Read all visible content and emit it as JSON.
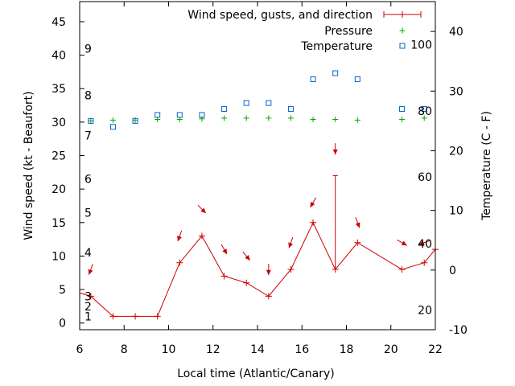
{
  "chart_data": {
    "type": "line",
    "xlabel": "Local time (Atlantic/Canary)",
    "ylabel": "Wind speed (kt - Beaufort)",
    "y2label": "Temperature (C - F)",
    "xlim": [
      6,
      22
    ],
    "ylim": [
      -1,
      48
    ],
    "y2lim": [
      -10,
      45
    ],
    "grid": false,
    "legend_placement": "top-right",
    "x_ticks": [
      6,
      8,
      10,
      12,
      14,
      16,
      18,
      20,
      22
    ],
    "y_ticks": [
      0,
      5,
      10,
      15,
      20,
      25,
      30,
      35,
      40,
      45
    ],
    "y2_ticks": [
      -10,
      0,
      10,
      20,
      30,
      40
    ],
    "beaufort_labels": [
      {
        "value": 1,
        "label": "1"
      },
      {
        "value": 2.5,
        "label": "2"
      },
      {
        "value": 4,
        "label": "3"
      },
      {
        "value": 10.5,
        "label": "4"
      },
      {
        "value": 16.5,
        "label": "5"
      },
      {
        "value": 21.5,
        "label": "6"
      },
      {
        "value": 28,
        "label": "7"
      },
      {
        "value": 34,
        "label": "8"
      },
      {
        "value": 41,
        "label": "9"
      }
    ],
    "fahrenheit_labels": [
      {
        "value": -6.7,
        "label": "20"
      },
      {
        "value": 4.4,
        "label": "40"
      },
      {
        "value": 15.6,
        "label": "60"
      },
      {
        "value": 26.7,
        "label": "80"
      },
      {
        "value": 37.8,
        "label": "100"
      }
    ],
    "series": [
      {
        "name": "Wind speed, gusts, and direction",
        "color": "#cc0000",
        "x": [
          5.5,
          6.5,
          7.5,
          8.5,
          9.5,
          10.5,
          11.5,
          12.5,
          13.5,
          14.5,
          15.5,
          16.5,
          17.5,
          18.5,
          20.5,
          21.5,
          22
        ],
        "y": [
          5,
          4,
          1,
          1,
          1,
          9,
          13,
          7,
          6,
          4,
          8,
          15,
          8,
          12,
          8,
          9,
          11
        ],
        "gusts": [
          {
            "x": 17.5,
            "low": 8,
            "high": 22
          }
        ],
        "direction_y": [
          8,
          17,
          13,
          11,
          10,
          8,
          12,
          18,
          26,
          15,
          12,
          12
        ],
        "direction_x": [
          6.5,
          11.5,
          10.5,
          12.5,
          13.5,
          14.5,
          15.5,
          16.5,
          17.5,
          18.5,
          20.5,
          21.5
        ],
        "direction_deg": [
          200,
          135,
          200,
          150,
          140,
          180,
          200,
          210,
          180,
          160,
          120,
          250
        ]
      },
      {
        "name": "Pressure",
        "color": "#00aa00",
        "x": [
          6.5,
          7.5,
          8.5,
          9.5,
          10.5,
          11.5,
          12.5,
          13.5,
          14.5,
          15.5,
          16.5,
          17.5,
          18.5,
          20.5,
          21.5
        ],
        "y": [
          30.2,
          30.3,
          30.3,
          30.4,
          30.4,
          30.5,
          30.6,
          30.6,
          30.6,
          30.6,
          30.4,
          30.4,
          30.3,
          30.4,
          30.6
        ]
      },
      {
        "name": "Temperature",
        "color": "#0066cc",
        "x": [
          6.5,
          7.5,
          8.5,
          9.5,
          10.5,
          11.5,
          12.5,
          13.5,
          14.5,
          15.5,
          16.5,
          17.5,
          18.5,
          20.5,
          21.5
        ],
        "y": [
          25,
          24,
          25,
          26,
          26,
          26,
          27,
          28,
          28,
          27,
          32,
          33,
          32,
          27,
          27
        ]
      }
    ]
  }
}
